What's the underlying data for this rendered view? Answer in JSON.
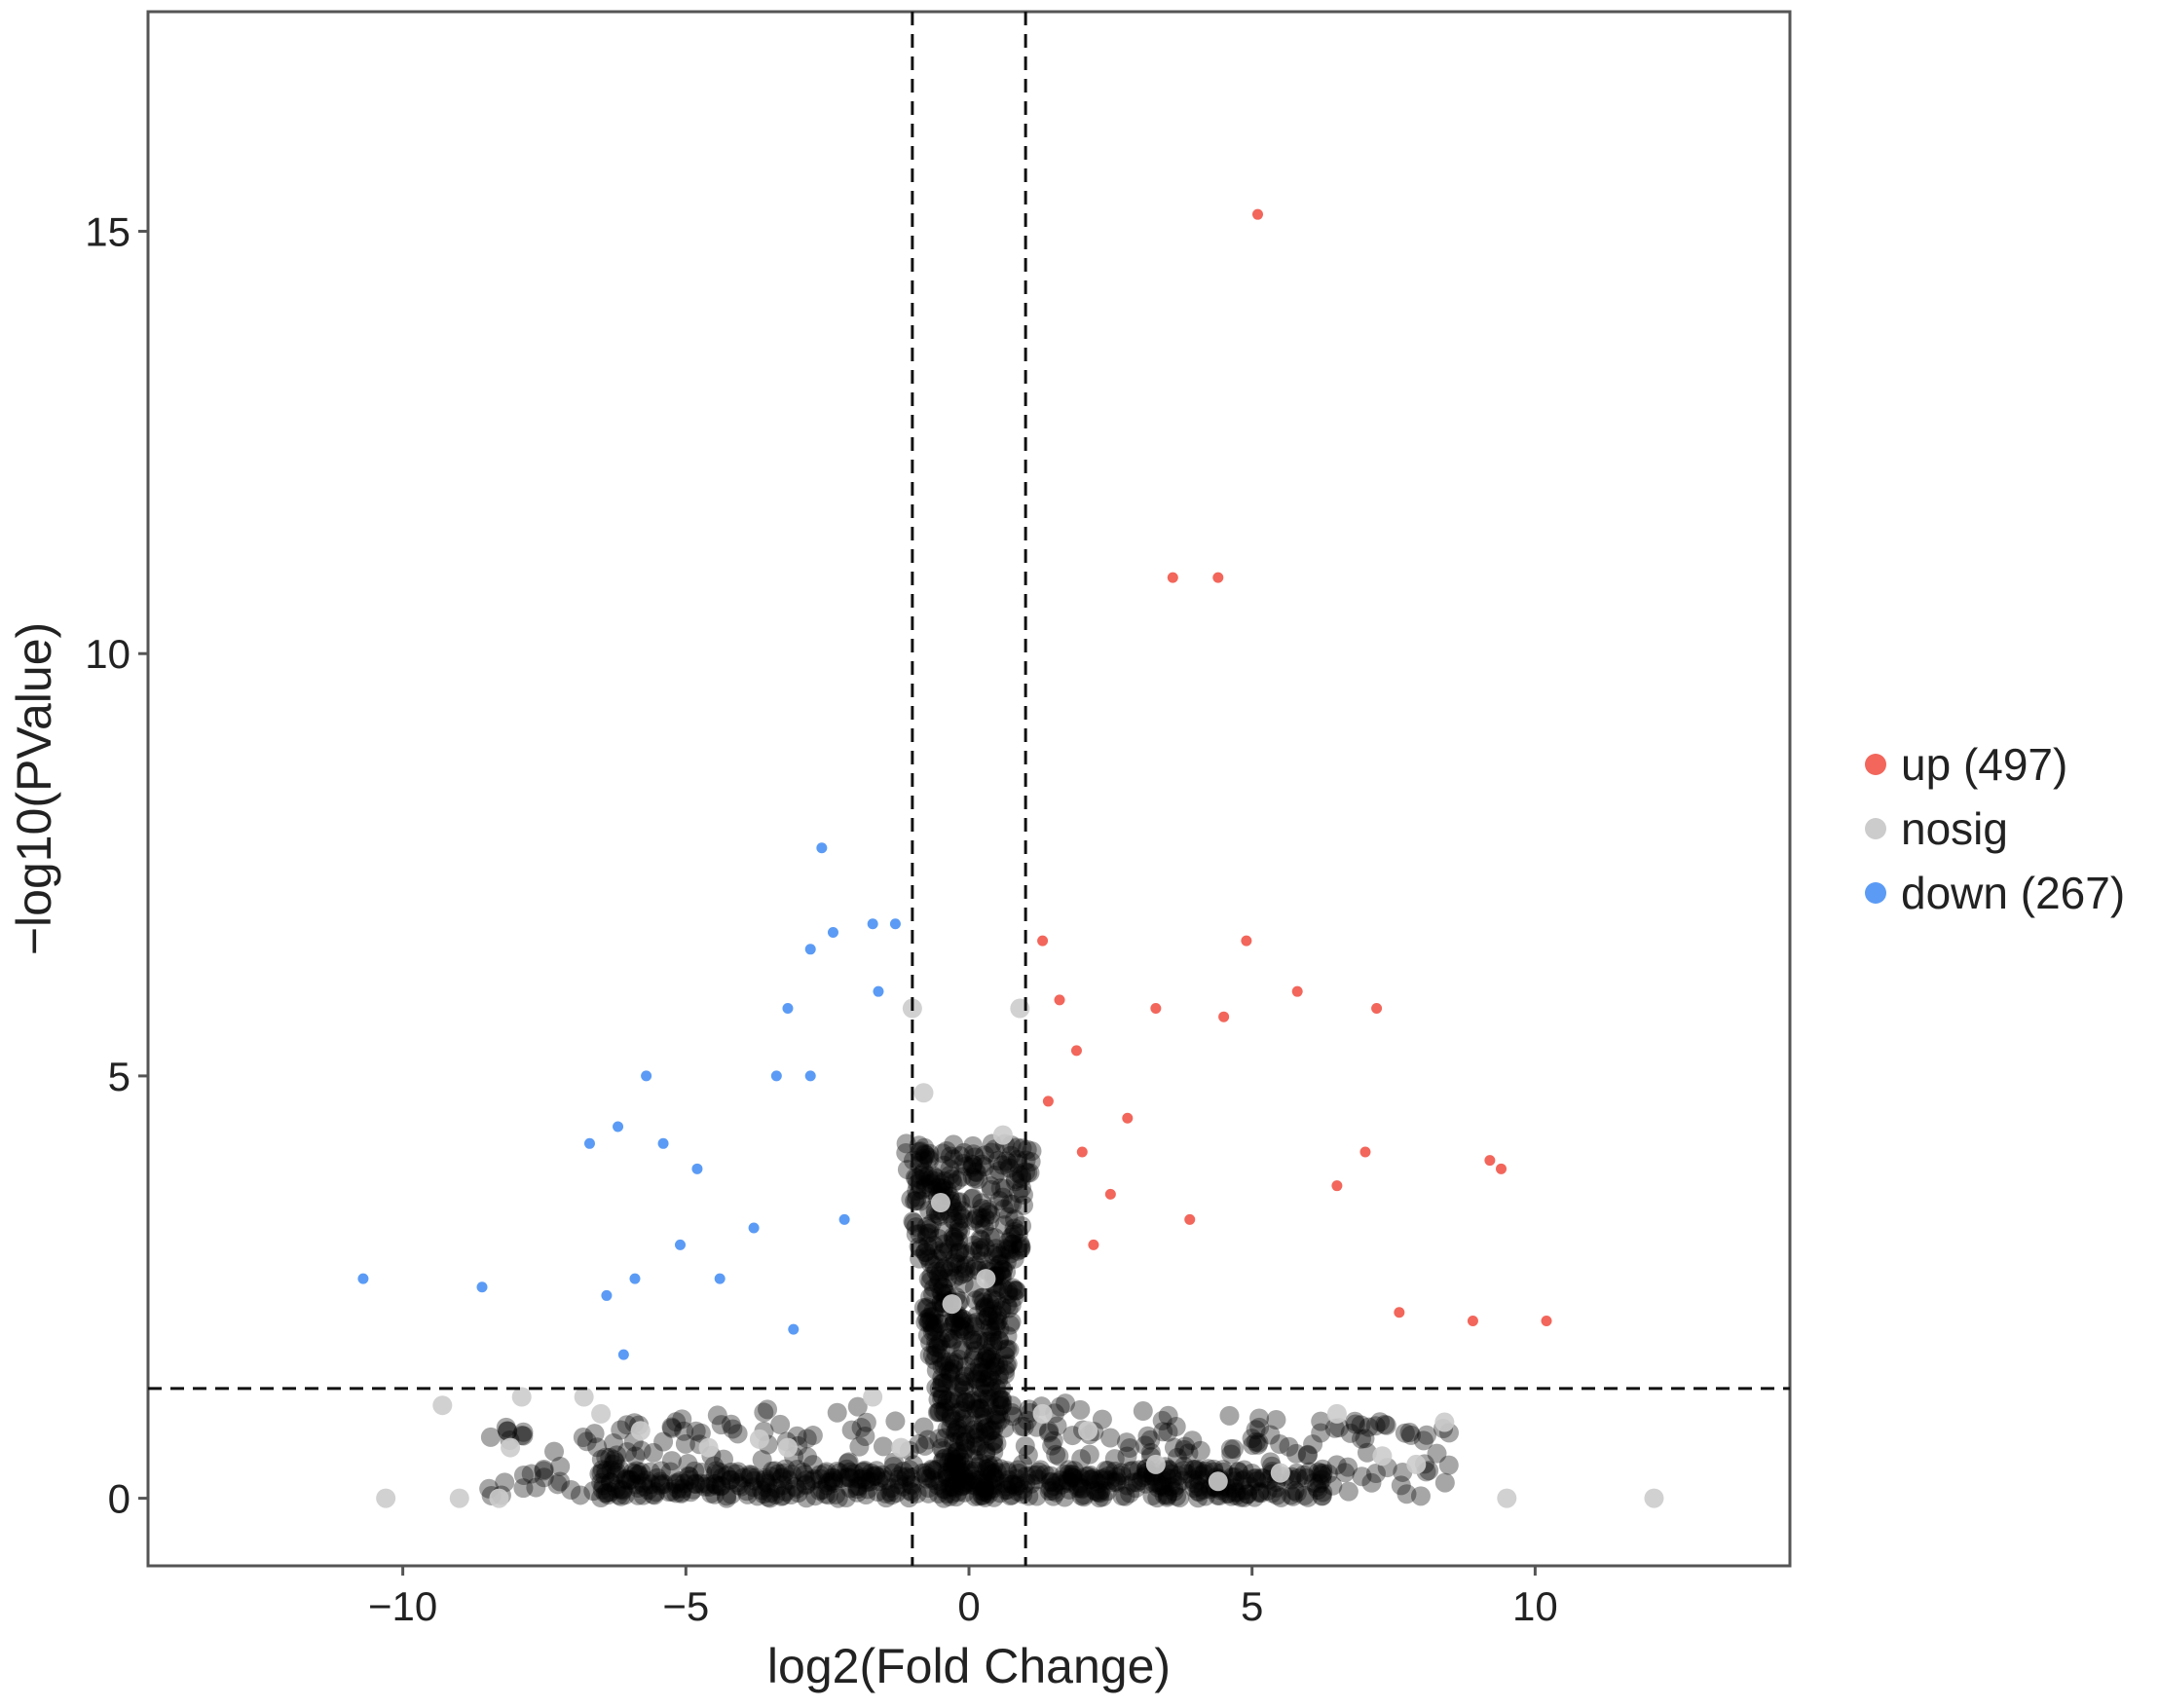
{
  "chart_data": {
    "type": "scatter",
    "title": "",
    "xlabel": "log2(Fold Change)",
    "ylabel": "−log10(PValue)",
    "xlim": [
      -14.5,
      14.5
    ],
    "ylim": [
      -0.8,
      17.6
    ],
    "x_ticks": [
      {
        "value": -10,
        "label": "−10"
      },
      {
        "value": -5,
        "label": "−5"
      },
      {
        "value": 0,
        "label": "0"
      },
      {
        "value": 5,
        "label": "5"
      },
      {
        "value": 10,
        "label": "10"
      }
    ],
    "y_ticks": [
      {
        "value": 0,
        "label": "0"
      },
      {
        "value": 5,
        "label": "5"
      },
      {
        "value": 10,
        "label": "10"
      },
      {
        "value": 15,
        "label": "15"
      }
    ],
    "grid": false,
    "legend_position": "right",
    "thresholds": {
      "fold_change_lines": [
        -1,
        1
      ],
      "pvalue_line": 1.3
    },
    "legend": [
      {
        "key": "up",
        "label": "up (497)",
        "color": "#f2665b"
      },
      {
        "key": "nosig",
        "label": "nosig",
        "color": "#cccccc"
      },
      {
        "key": "down",
        "label": "down (267)",
        "color": "#5b9bf5"
      }
    ],
    "series": [
      {
        "key": "up",
        "color": "#f2665b",
        "x": [
          5.1,
          3.6,
          4.4,
          1.3,
          4.9,
          1.6,
          5.8,
          7.2,
          1.9,
          3.3,
          4.5,
          2.8,
          1.4,
          9.2,
          9.4,
          7.0,
          2.5,
          3.9,
          6.5,
          10.2,
          8.9,
          7.6,
          2.0,
          2.2
        ],
        "y": [
          15.2,
          10.9,
          10.9,
          6.6,
          6.6,
          5.9,
          6.0,
          5.8,
          5.3,
          5.8,
          5.7,
          4.5,
          4.7,
          4.0,
          3.9,
          4.1,
          3.6,
          3.3,
          3.7,
          2.1,
          2.1,
          2.2,
          4.1,
          3.0
        ]
      },
      {
        "key": "down",
        "color": "#5b9bf5",
        "x": [
          -2.6,
          -2.4,
          -1.7,
          -1.3,
          -2.8,
          -1.6,
          -3.2,
          -5.7,
          -3.4,
          -2.8,
          -6.7,
          -6.2,
          -5.4,
          -4.8,
          -10.7,
          -8.6,
          -6.4,
          -5.9,
          -5.1,
          -4.4,
          -3.8,
          -6.1,
          -2.2,
          -3.1
        ],
        "y": [
          7.7,
          6.7,
          6.8,
          6.8,
          6.5,
          6.0,
          5.8,
          5.0,
          5.0,
          5.0,
          4.2,
          4.4,
          4.2,
          3.9,
          2.6,
          2.5,
          2.4,
          2.6,
          3.0,
          2.6,
          3.2,
          1.7,
          3.3,
          2.0
        ]
      },
      {
        "key": "nosig",
        "color": "#cccccc",
        "x": [
          -10.3,
          -9.0,
          -8.3,
          -8.1,
          -9.3,
          -7.9,
          -6.8,
          -6.5,
          -5.8,
          -4.6,
          -3.7,
          -3.2,
          -1.7,
          -1.2,
          -1.0,
          -0.8,
          -0.5,
          -0.3,
          0.3,
          0.6,
          0.9,
          1.3,
          2.1,
          3.3,
          4.4,
          5.5,
          6.5,
          7.3,
          7.9,
          8.4,
          9.5,
          12.1
        ],
        "y": [
          0.0,
          0.0,
          0.0,
          0.6,
          1.1,
          1.2,
          1.2,
          1.0,
          0.8,
          0.6,
          0.7,
          0.6,
          1.2,
          0.6,
          5.8,
          4.8,
          3.5,
          2.3,
          2.6,
          4.3,
          5.8,
          1.0,
          0.8,
          0.4,
          0.2,
          0.3,
          1.0,
          0.5,
          0.4,
          0.9,
          0.0,
          0.0
        ]
      }
    ]
  }
}
